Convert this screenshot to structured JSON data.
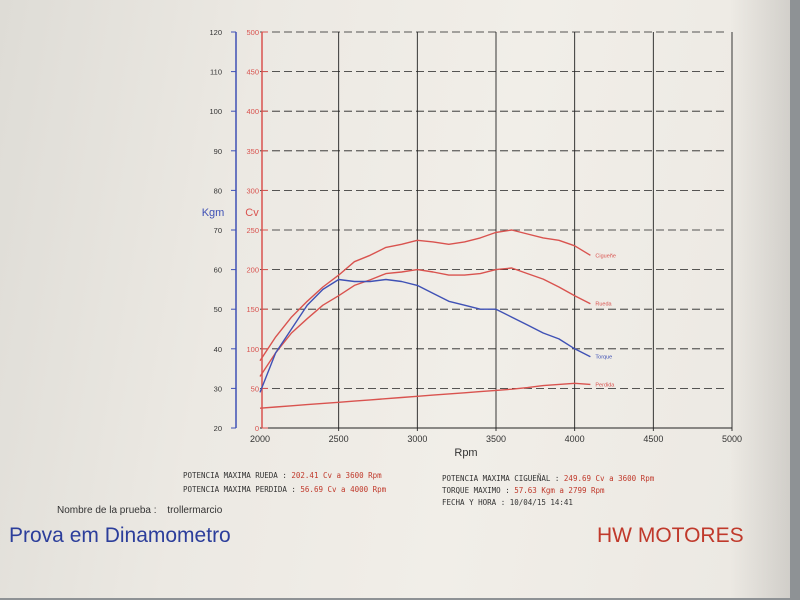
{
  "chart_data": {
    "type": "line",
    "x": [
      2000,
      2100,
      2200,
      2300,
      2400,
      2500,
      2600,
      2700,
      2800,
      2900,
      3000,
      3100,
      3200,
      3300,
      3400,
      3500,
      3600,
      3700,
      3800,
      3900,
      4000,
      4100
    ],
    "xlabel": "Rpm",
    "xlim": [
      2000,
      5000
    ],
    "xticks": [
      2000,
      2500,
      3000,
      3500,
      4000,
      4500,
      5000
    ],
    "grid": true,
    "y_torque_axis": {
      "label": "Kgm",
      "range": [
        20,
        120
      ],
      "ticks": [
        20,
        30,
        40,
        50,
        60,
        70,
        80,
        90,
        100,
        110,
        120
      ]
    },
    "y_power_axis": {
      "label": "Cv",
      "range": [
        0,
        500
      ],
      "ticks": [
        0,
        50,
        100,
        150,
        200,
        250,
        300,
        350,
        400,
        450,
        500
      ]
    },
    "series": [
      {
        "name": "Cigueñe",
        "axis": "power",
        "color": "#d9534f",
        "values": [
          85,
          115,
          140,
          160,
          178,
          193,
          210,
          218,
          228,
          232,
          237,
          235,
          232,
          235,
          240,
          247,
          250,
          245,
          240,
          237,
          230,
          218
        ]
      },
      {
        "name": "Rueda",
        "axis": "power",
        "color": "#d9534f",
        "values": [
          65,
          95,
          120,
          138,
          155,
          167,
          180,
          187,
          195,
          197,
          200,
          197,
          193,
          193,
          195,
          200,
          202,
          195,
          188,
          178,
          167,
          157
        ]
      },
      {
        "name": "Torque",
        "axis": "torque",
        "color": "#3f51b5",
        "values": [
          29,
          39,
          45,
          51,
          55,
          57.5,
          57,
          57,
          57.5,
          57,
          56,
          54,
          52,
          51,
          50,
          50,
          48,
          46,
          44,
          42.5,
          40,
          38
        ]
      },
      {
        "name": "Perdida",
        "axis": "power",
        "color": "#d9534f",
        "values": [
          25,
          26.5,
          28,
          29.5,
          31,
          32.5,
          34,
          35.5,
          37,
          38.5,
          40,
          41.5,
          43,
          44.5,
          46,
          47.5,
          49,
          51,
          53.5,
          55,
          56.5,
          55
        ]
      }
    ]
  },
  "report": {
    "pot_rueda_label": "POTENCIA MAXIMA RUEDA :",
    "pot_rueda_value": "202.41 Cv a 3600 Rpm",
    "pot_perdida_label": "POTENCIA MAXIMA PERDIDA :",
    "pot_perdida_value": "56.69 Cv a 4000 Rpm",
    "pot_ciguenal_label": "POTENCIA MAXIMA CIGUEÑAL :",
    "pot_ciguenal_value": "249.69 Cv a 3600 Rpm",
    "torque_label": "TORQUE MAXIMO :",
    "torque_value": "57.63 Kgm a 2799 Rpm",
    "fecha_label": "FECHA Y HORA :",
    "fecha_value": "10/04/15 14:41",
    "prueba_label": "Nombre de la prueba :",
    "prueba_value": "trollermarcio"
  },
  "footer": {
    "title": "Prova em Dinamometro",
    "brand": "HW MOTORES"
  },
  "colors": {
    "power": "#d9534f",
    "torque": "#3f51b5",
    "grid": "#222222",
    "brand": "#c0392b",
    "title": "#2c3e9b"
  }
}
